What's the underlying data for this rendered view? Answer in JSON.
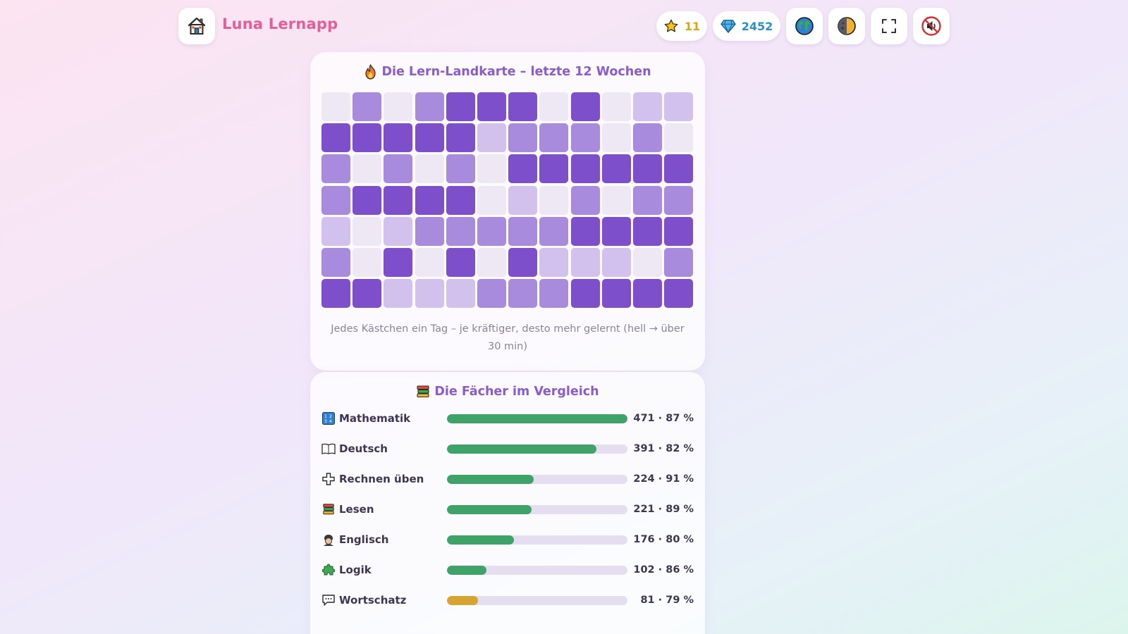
{
  "app": {
    "title": "Luna Lernapp",
    "home_icon": "house-icon"
  },
  "header": {
    "stars": "11",
    "gems": "2452",
    "buttons": [
      "globe-icon",
      "theme-toggle-icon",
      "fullscreen-icon",
      "mute-icon"
    ]
  },
  "colors": {
    "accent": "#8a5cd0",
    "title_pink": "#e75d98",
    "heat_levels": [
      "#eee8f5",
      "#d2c1ec",
      "#a98bdd",
      "#7d4fcb"
    ],
    "bar_green": "#3fa268",
    "bar_gold": "#d6a431"
  },
  "heatmap": {
    "title": "Die Lern-Landkarte – letzte 12 Wochen",
    "icon": "fire-icon",
    "note": "Jedes Kästchen ein Tag – je kräftiger, desto mehr gelernt (hell → über 30 min)",
    "rows": [
      [
        0,
        2,
        0,
        2,
        3,
        3,
        3,
        0,
        3,
        0,
        1,
        1
      ],
      [
        3,
        3,
        3,
        3,
        3,
        1,
        2,
        2,
        2,
        0,
        2,
        0
      ],
      [
        2,
        0,
        2,
        0,
        2,
        0,
        3,
        3,
        3,
        3,
        3,
        3
      ],
      [
        2,
        3,
        3,
        3,
        3,
        0,
        1,
        0,
        2,
        0,
        2,
        2
      ],
      [
        1,
        0,
        1,
        2,
        2,
        2,
        2,
        2,
        3,
        3,
        3,
        3
      ],
      [
        2,
        0,
        3,
        0,
        3,
        0,
        3,
        1,
        1,
        1,
        0,
        2
      ],
      [
        3,
        3,
        1,
        1,
        1,
        2,
        2,
        2,
        3,
        3,
        3,
        3
      ]
    ]
  },
  "subjects": {
    "title": "Die Fächer im Vergleich",
    "icon": "books-icon",
    "items": [
      {
        "name": "Mathematik",
        "icon": "numbers-icon",
        "count": 471,
        "percent": 87,
        "stat": "471 · 87 %",
        "fill": 1.0,
        "color": "green"
      },
      {
        "name": "Deutsch",
        "icon": "open-book-icon",
        "count": 391,
        "percent": 82,
        "stat": "391 · 82 %",
        "fill": 0.83,
        "color": "green"
      },
      {
        "name": "Rechnen üben",
        "icon": "plus-icon",
        "count": 224,
        "percent": 91,
        "stat": "224 · 91 %",
        "fill": 0.48,
        "color": "green"
      },
      {
        "name": "Lesen",
        "icon": "books-icon",
        "count": 221,
        "percent": 89,
        "stat": "221 · 89 %",
        "fill": 0.47,
        "color": "green"
      },
      {
        "name": "Englisch",
        "icon": "guard-icon",
        "count": 176,
        "percent": 80,
        "stat": "176 · 80 %",
        "fill": 0.37,
        "color": "green"
      },
      {
        "name": "Logik",
        "icon": "puzzle-icon",
        "count": 102,
        "percent": 86,
        "stat": "102 · 86 %",
        "fill": 0.22,
        "color": "green"
      },
      {
        "name": "Wortschatz",
        "icon": "speech-bubble-icon",
        "count": 81,
        "percent": 79,
        "stat": "81 · 79 %",
        "fill": 0.17,
        "color": "gold"
      }
    ]
  }
}
